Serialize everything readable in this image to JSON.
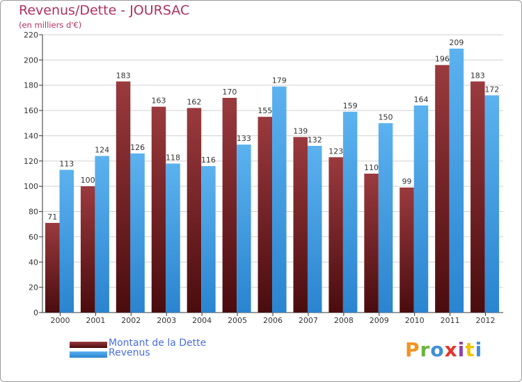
{
  "colors": {
    "title": "#b0305e",
    "dette": "#7b1f22",
    "revenus": "#3f9fe6",
    "grid": "#d0d0d0",
    "axis": "#333333",
    "legend_text": "#4a6ee0"
  },
  "logo": {
    "text": "Proxiti",
    "colors": [
      "#f39221",
      "#6cb33f",
      "#3f8fd8",
      "#e5342a",
      "#8e44ad",
      "#f2c300",
      "#3f8fd8"
    ]
  },
  "chart_data": {
    "type": "bar",
    "title": "Revenus/Dette - JOURSAC",
    "subtitle": "(en milliers d'€)",
    "xlabel": "",
    "ylabel": "",
    "ylim": [
      0,
      220
    ],
    "yticks": [
      0,
      20,
      40,
      60,
      80,
      100,
      120,
      140,
      160,
      180,
      200,
      220
    ],
    "grid": true,
    "legend_position": "bottom-left",
    "categories": [
      "2000",
      "2001",
      "2002",
      "2003",
      "2004",
      "2005",
      "2006",
      "2007",
      "2008",
      "2009",
      "2010",
      "2011",
      "2012"
    ],
    "series": [
      {
        "name": "Montant de la Dette",
        "values": [
          71,
          100,
          183,
          163,
          162,
          170,
          155,
          139,
          123,
          110,
          99,
          196,
          183
        ]
      },
      {
        "name": "Revenus",
        "values": [
          113,
          124,
          126,
          118,
          116,
          133,
          179,
          132,
          159,
          150,
          164,
          209,
          172
        ]
      }
    ]
  }
}
